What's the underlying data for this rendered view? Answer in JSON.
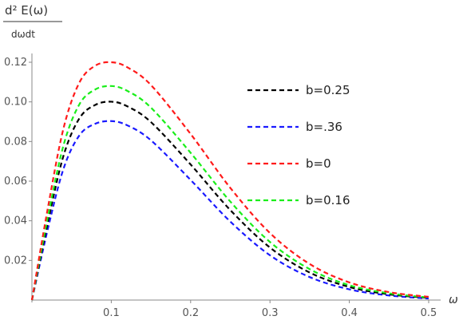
{
  "chart_data": {
    "type": "line",
    "title": "",
    "ylabel_top": "d² E(ω)",
    "ylabel_bottom": "dωdt",
    "xlabel": "ω",
    "xlim": [
      0,
      0.5
    ],
    "ylim": [
      0,
      0.125
    ],
    "xticks": [
      0.1,
      0.2,
      0.3,
      0.4,
      0.5
    ],
    "xtick_labels": [
      "0.1",
      "0.2",
      "0.3",
      "0.4",
      "0.5"
    ],
    "yticks": [
      0.02,
      0.04,
      0.06,
      0.08,
      0.1,
      0.12
    ],
    "ytick_labels": [
      "0.02",
      "0.04",
      "0.06",
      "0.08",
      "0.10",
      "0.12"
    ],
    "grid": false,
    "legend_position": "top-right",
    "x": [
      0,
      0.02,
      0.04,
      0.06,
      0.08,
      0.1,
      0.12,
      0.15,
      0.2,
      0.25,
      0.3,
      0.35,
      0.4,
      0.45,
      0.5
    ],
    "series": [
      {
        "name": "b=0.25",
        "color": "#000000",
        "values": [
          0,
          0.0392,
          0.0731,
          0.0918,
          0.0985,
          0.1001,
          0.0978,
          0.0898,
          0.0684,
          0.0454,
          0.0265,
          0.0139,
          0.0066,
          0.0029,
          0.0011
        ]
      },
      {
        "name": "b=.36",
        "color": "#1a1aff",
        "values": [
          0,
          0.0358,
          0.0665,
          0.0832,
          0.089,
          0.0903,
          0.0882,
          0.0806,
          0.0606,
          0.0396,
          0.0226,
          0.0116,
          0.0054,
          0.0023,
          0.0008
        ]
      },
      {
        "name": "b=0",
        "color": "#ff1a1a",
        "values": [
          0,
          0.0463,
          0.087,
          0.1099,
          0.1183,
          0.12,
          0.1175,
          0.1085,
          0.0838,
          0.0566,
          0.0338,
          0.0182,
          0.0089,
          0.004,
          0.0016
        ]
      },
      {
        "name": "b=0.16",
        "color": "#1aee1a",
        "values": [
          0,
          0.0418,
          0.0784,
          0.0989,
          0.1063,
          0.108,
          0.1056,
          0.0971,
          0.0743,
          0.0497,
          0.0293,
          0.0156,
          0.0075,
          0.0034,
          0.0013
        ]
      }
    ],
    "legend_order": [
      0,
      1,
      2,
      3
    ]
  }
}
